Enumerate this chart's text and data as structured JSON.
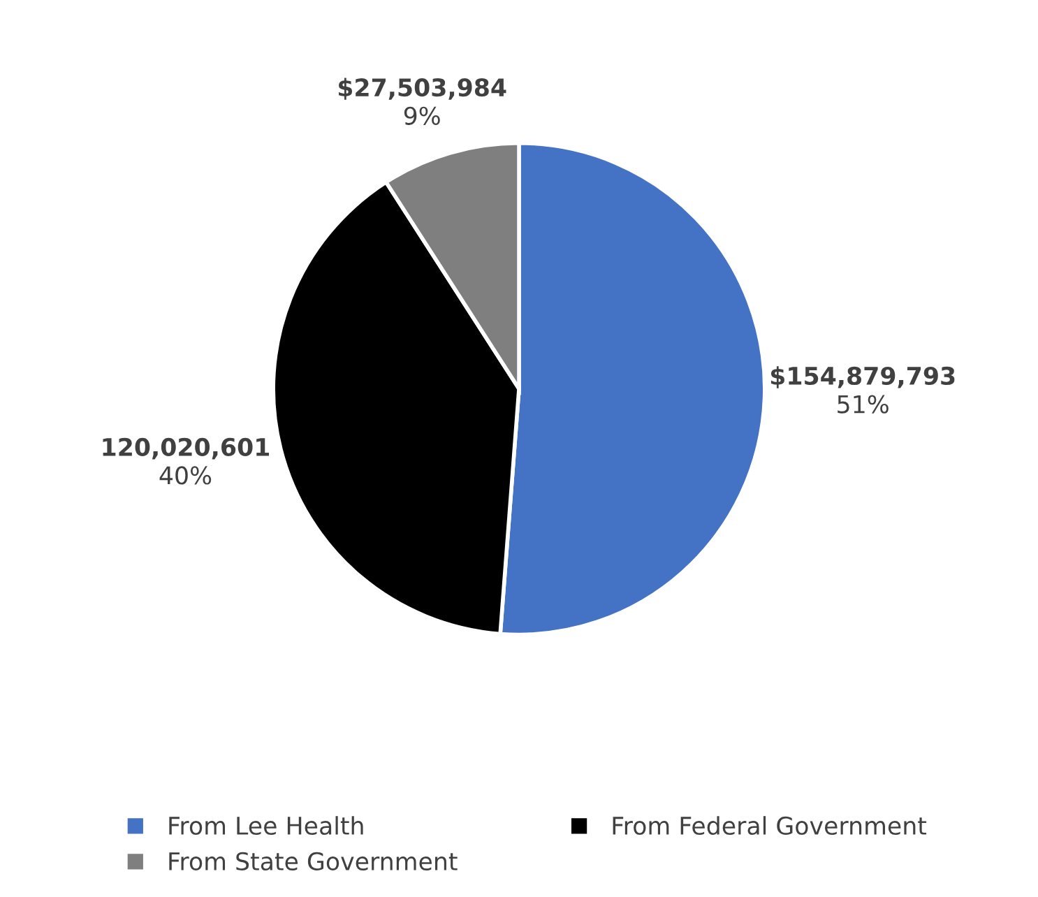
{
  "chart_data": {
    "type": "pie",
    "categories": [
      "From Lee Health",
      "From Federal Government",
      "From State Government"
    ],
    "values": [
      154879793,
      120020601,
      27503984
    ],
    "colors": [
      "#4472c4",
      "#000000",
      "#7f7f7f"
    ],
    "value_labels": [
      "$154,879,793",
      "120,020,601",
      "$27,503,984"
    ],
    "annotations": [
      "51%",
      "40%",
      "9%"
    ],
    "legend": "bottom"
  }
}
